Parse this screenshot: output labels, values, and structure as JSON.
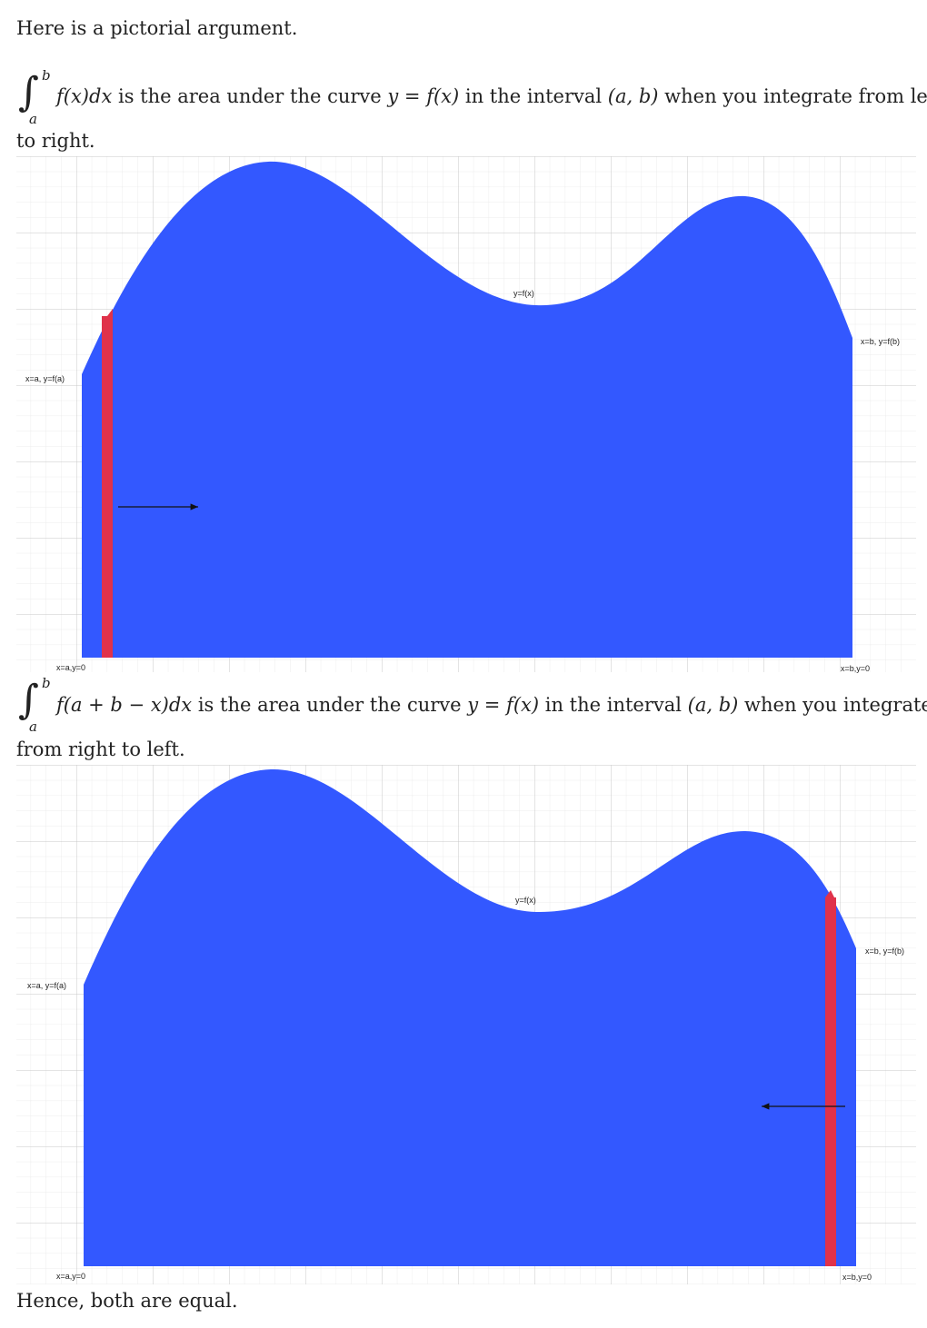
{
  "intro": "Here is a pictorial argument.",
  "statement1": {
    "upper": "b",
    "lower": "a",
    "integrand": "f(x)dx",
    "text_a": " is the area under the curve ",
    "curve": "y = f(x)",
    "text_b": " in the interval ",
    "interval": "(a, b)",
    "text_c": " when you integrate from left",
    "continuation": "to right."
  },
  "statement2": {
    "upper": "b",
    "lower": "a",
    "integrand": "f(a + b − x)dx",
    "text_a": " is the area under the curve ",
    "curve": "y = f(x)",
    "text_b": " in the interval ",
    "interval": "(a, b)",
    "text_c": " when you integrate",
    "continuation": "from right to left."
  },
  "figure1": {
    "label_curve": "y=f(x)",
    "label_left_top": "x=a, y=f(a)",
    "label_right_top": "x=b, y=f(b)",
    "label_left_bottom": "x=a,y=0",
    "label_right_bottom": "x=b,y=0",
    "arrow_direction": "right",
    "fill_color": "#3358ff",
    "strip_color": "#e0324a"
  },
  "figure2": {
    "label_curve": "y=f(x)",
    "label_left_top": "x=a, y=f(a)",
    "label_right_top": "x=b, y=f(b)",
    "label_left_bottom": "x=a,y=0",
    "label_right_bottom": "x=b,y=0",
    "arrow_direction": "left",
    "fill_color": "#3358ff",
    "strip_color": "#e0324a"
  },
  "conclusion": "Hence, both are equal."
}
